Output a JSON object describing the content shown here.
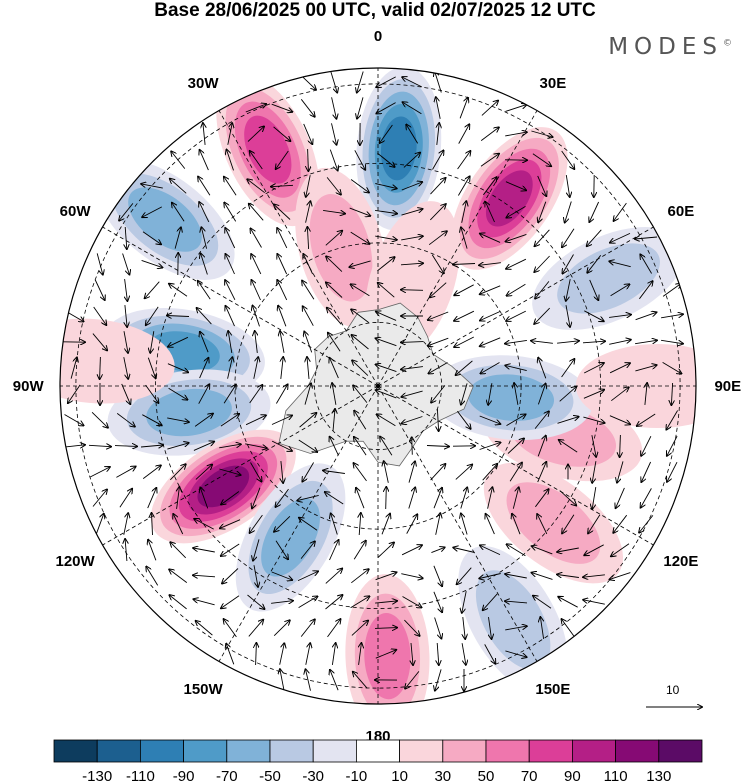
{
  "title": "Base 28/06/2025 00 UTC, valid 02/07/2025 12 UTC",
  "brand": "MODES",
  "brand_mark": "©",
  "longitude_labels": [
    {
      "text": "0",
      "lon": 0
    },
    {
      "text": "30E",
      "lon": 30
    },
    {
      "text": "60E",
      "lon": 60
    },
    {
      "text": "90E",
      "lon": 90
    },
    {
      "text": "120E",
      "lon": 120
    },
    {
      "text": "150E",
      "lon": 150
    },
    {
      "text": "180",
      "lon": 180
    },
    {
      "text": "150W",
      "lon": 210
    },
    {
      "text": "120W",
      "lon": 240
    },
    {
      "text": "90W",
      "lon": 270
    },
    {
      "text": "60W",
      "lon": 300
    },
    {
      "text": "30W",
      "lon": 330
    }
  ],
  "reference_vector": {
    "value": "10"
  },
  "colorbar": {
    "ticks": [
      "-130",
      "-110",
      "-90",
      "-70",
      "-50",
      "-30",
      "-10",
      "10",
      "30",
      "50",
      "70",
      "90",
      "110",
      "130"
    ],
    "colors": [
      "#0d3c5e",
      "#1c5f8f",
      "#2e7fb4",
      "#4f9bc8",
      "#80b2d8",
      "#b9c9e3",
      "#e3e4f1",
      "#ffffff",
      "#fad6dc",
      "#f6aac3",
      "#ef76ad",
      "#dc3e98",
      "#b41f86",
      "#860a74",
      "#5b0b66"
    ]
  },
  "map": {
    "projection": "south polar stereographic",
    "land_color": "#eaeaea",
    "anomalies": [
      {
        "lon": 5,
        "r": 0.75,
        "value": -105
      },
      {
        "lon": 35,
        "r": 0.72,
        "value": 100
      },
      {
        "lon": 335,
        "r": 0.82,
        "value": 90
      },
      {
        "lon": 308,
        "r": 0.85,
        "value": -55
      },
      {
        "lon": 345,
        "r": 0.45,
        "value": 45
      },
      {
        "lon": 280,
        "r": 0.62,
        "value": -75
      },
      {
        "lon": 262,
        "r": 0.6,
        "value": -60
      },
      {
        "lon": 237,
        "r": 0.58,
        "value": 130
      },
      {
        "lon": 210,
        "r": 0.55,
        "value": -65
      },
      {
        "lon": 178,
        "r": 0.85,
        "value": 60
      },
      {
        "lon": 150,
        "r": 0.85,
        "value": -45
      },
      {
        "lon": 128,
        "r": 0.7,
        "value": 40
      },
      {
        "lon": 105,
        "r": 0.6,
        "value": 35
      },
      {
        "lon": 95,
        "r": 0.42,
        "value": -55
      },
      {
        "lon": 65,
        "r": 0.8,
        "value": -45
      },
      {
        "lon": 90,
        "r": 0.88,
        "value": 25
      },
      {
        "lon": 275,
        "r": 0.9,
        "value": 30
      },
      {
        "lon": 18,
        "r": 0.35,
        "value": 30
      }
    ]
  }
}
